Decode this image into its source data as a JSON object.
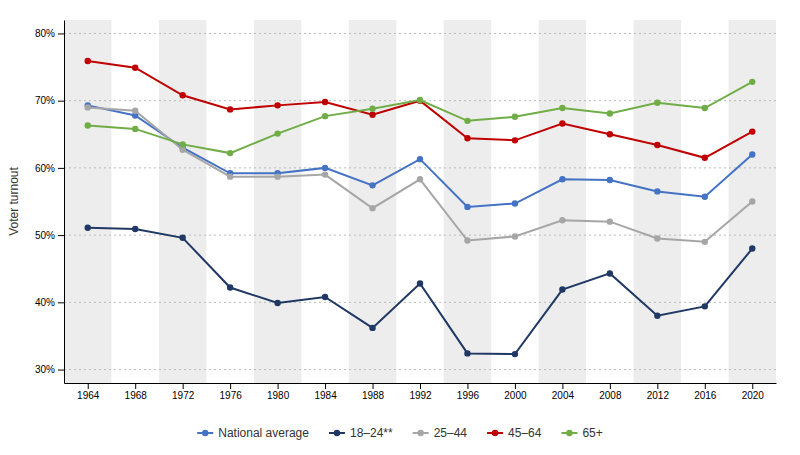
{
  "chart_data": {
    "type": "line",
    "y_label": "Voter turnout",
    "x": [
      1964,
      1968,
      1972,
      1976,
      1980,
      1984,
      1988,
      1992,
      1996,
      2000,
      2004,
      2008,
      2012,
      2016,
      2020
    ],
    "xlim": [
      1962,
      2022
    ],
    "xticks": [
      1964,
      1968,
      1972,
      1976,
      1980,
      1984,
      1988,
      1992,
      1996,
      2000,
      2004,
      2008,
      2012,
      2016,
      2020
    ],
    "ylim": [
      28,
      82
    ],
    "yticks": [
      {
        "value": 30,
        "label": "30%"
      },
      {
        "value": 40,
        "label": "40%"
      },
      {
        "value": 50,
        "label": "50%"
      },
      {
        "value": 60,
        "label": "60%"
      },
      {
        "value": 70,
        "label": "70%"
      },
      {
        "value": 80,
        "label": "80%"
      }
    ],
    "grid": "y",
    "legend": "bottom",
    "marker": "circle",
    "series": [
      {
        "name": "National average",
        "color": "#4472c4",
        "values": [
          69.3,
          67.8,
          63.0,
          59.2,
          59.2,
          60.0,
          57.4,
          61.3,
          54.2,
          54.7,
          58.3,
          58.2,
          56.5,
          55.7,
          62.0
        ]
      },
      {
        "name": "18–24**",
        "color": "#1f3864",
        "values": [
          51.1,
          50.9,
          49.6,
          42.2,
          39.9,
          40.8,
          36.2,
          42.8,
          32.4,
          32.3,
          41.9,
          44.3,
          38.0,
          39.4,
          48.0
        ]
      },
      {
        "name": "25–44",
        "color": "#a6a6a6",
        "values": [
          69.0,
          68.5,
          62.7,
          58.7,
          58.7,
          59.0,
          54.0,
          58.3,
          49.2,
          49.8,
          52.2,
          52.0,
          49.5,
          49.0,
          55.0
        ]
      },
      {
        "name": "45–64",
        "color": "#c00000",
        "values": [
          75.9,
          74.9,
          70.8,
          68.7,
          69.3,
          69.8,
          67.9,
          70.0,
          64.4,
          64.1,
          66.6,
          65.0,
          63.4,
          61.5,
          65.4
        ]
      },
      {
        "name": "65+",
        "color": "#70ad47",
        "values": [
          66.3,
          65.8,
          63.5,
          62.2,
          65.1,
          67.7,
          68.8,
          70.1,
          67.0,
          67.6,
          68.9,
          68.1,
          69.7,
          68.9,
          72.8
        ]
      }
    ]
  }
}
